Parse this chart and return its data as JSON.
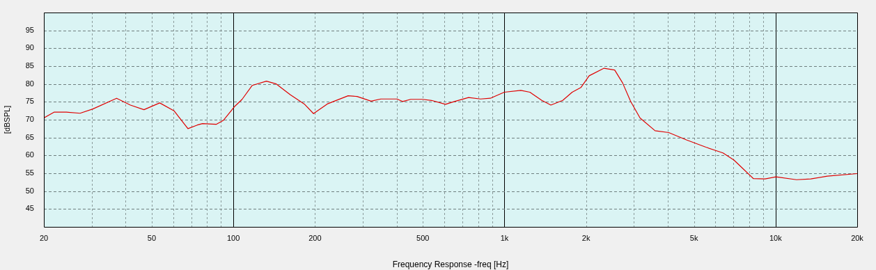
{
  "chart_data": {
    "type": "line",
    "xlabel": "Frequency Response -freq [Hz]",
    "ylabel": "[dBSPL]",
    "log": "x",
    "grid": true,
    "x": [
      20,
      21.8,
      24.2,
      27.2,
      30.3,
      37.1,
      41.7,
      46.8,
      53.5,
      60.4,
      68,
      73.6,
      76.9,
      86.4,
      91.8,
      101.4,
      107.7,
      117.4,
      132.4,
      144,
      162,
      182.6,
      197.5,
      222,
      265,
      286,
      322,
      350,
      401,
      421,
      451,
      498,
      538,
      606,
      654,
      737,
      816,
      887,
      998,
      1149,
      1241,
      1373,
      1483,
      1640,
      1777,
      1913,
      2053,
      2329,
      2550,
      2727,
      2920,
      3162,
      3594,
      4035,
      4705,
      5534,
      6395,
      7020,
      8285,
      9140,
      10030,
      11950,
      13480,
      15520,
      20000
    ],
    "series": [
      {
        "color": "#e00000",
        "values": [
          70.5,
          72.1,
          72.1,
          71.8,
          73,
          76,
          74.1,
          72.8,
          74.7,
          72.5,
          67.5,
          68.5,
          68.9,
          68.7,
          69.8,
          73.8,
          75.7,
          79.6,
          80.8,
          80,
          77,
          74.4,
          71.7,
          74.4,
          76.7,
          76.5,
          75.2,
          75.8,
          75.8,
          75.1,
          75.7,
          75.7,
          75.4,
          74.3,
          75.1,
          76.2,
          75.8,
          76,
          77.7,
          78.2,
          77.7,
          75.4,
          74.1,
          75.4,
          77.7,
          79,
          82.3,
          84.4,
          83.9,
          80.3,
          75.1,
          70.5,
          66.9,
          66.4,
          64.3,
          62.3,
          60.7,
          58.7,
          53.5,
          53.4,
          54,
          53.2,
          53.4,
          54.2,
          54.9
        ]
      }
    ],
    "xlim": [
      20,
      20000
    ],
    "ylim": [
      40,
      100
    ],
    "xticks": [
      {
        "value": 20,
        "label": "20"
      },
      {
        "value": 30,
        "label": null
      },
      {
        "value": 40,
        "label": null
      },
      {
        "value": 50,
        "label": "50"
      },
      {
        "value": 60,
        "label": null
      },
      {
        "value": 70,
        "label": null
      },
      {
        "value": 80,
        "label": null
      },
      {
        "value": 90,
        "label": null
      },
      {
        "value": 100,
        "label": "100"
      },
      {
        "value": 200,
        "label": "200"
      },
      {
        "value": 300,
        "label": null
      },
      {
        "value": 400,
        "label": null
      },
      {
        "value": 500,
        "label": "500"
      },
      {
        "value": 600,
        "label": null
      },
      {
        "value": 700,
        "label": null
      },
      {
        "value": 800,
        "label": null
      },
      {
        "value": 900,
        "label": null
      },
      {
        "value": 1000,
        "label": "1k"
      },
      {
        "value": 2000,
        "label": "2k"
      },
      {
        "value": 3000,
        "label": null
      },
      {
        "value": 4000,
        "label": null
      },
      {
        "value": 5000,
        "label": "5k"
      },
      {
        "value": 6000,
        "label": null
      },
      {
        "value": 7000,
        "label": null
      },
      {
        "value": 8000,
        "label": null
      },
      {
        "value": 9000,
        "label": null
      },
      {
        "value": 10000,
        "label": "10k"
      },
      {
        "value": 20000,
        "label": "20k"
      }
    ],
    "yticks": [
      45,
      50,
      55,
      60,
      65,
      70,
      75,
      80,
      85,
      90,
      95
    ]
  }
}
